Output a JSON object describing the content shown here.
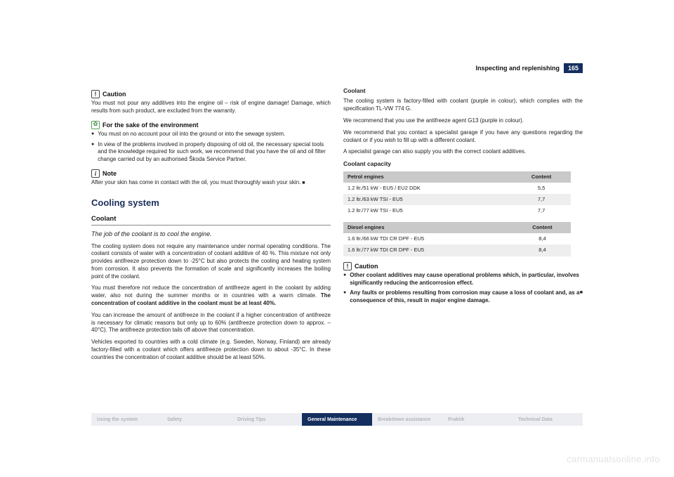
{
  "header": {
    "title": "Inspecting and replenishing",
    "page": "165"
  },
  "left": {
    "caution_h": "Caution",
    "caution_p": "You must not pour any additives into the engine oil – risk of engine damage! Damage, which results from such product, are excluded from the warranty.",
    "env_h": "For the sake of the environment",
    "env_b1": "You must on no account pour oil into the ground or into the sewage system.",
    "env_b2": "In view of the problems involved in properly disposing of old oil, the necessary special tools and the knowledge required for such work, we recommend that you have the oil and oil filter change carried out by an authorised Škoda Service Partner.",
    "note_h": "Note",
    "note_p": "After your skin has come in contact with the oil, you must thoroughly wash your skin.",
    "h1": "Cooling system",
    "h2": "Coolant",
    "italic": "The job of the coolant is to cool the engine.",
    "p1": "The cooling system does not require any maintenance under normal operating conditions. The coolant consists of water with a concentration of coolant additive of 40 %. This mixture not only provides antifreeze protection down to -25°C but also protects the cooling and heating system from corrosion. It also prevents the formation of scale and significantly increases the boiling point of the coolant.",
    "p2a": "You must therefore not reduce the concentration of antifreeze agent in the coolant by adding water, also not during the summer months or in countries with a warm climate. ",
    "p2b": "The concentration of coolant additive in the coolant must be at least 40%.",
    "p3": "You can increase the amount of antifreeze in the coolant if a higher concentration of antifreeze is necessary for climatic reasons but only up to 60% (antifreeze protection down to approx. –40°C). The antifreeze protection tails off above that concentration.",
    "p4": "Vehicles exported to countries with a cold climate (e.g. Sweden, Norway, Finland) are already factory-filled with a coolant which offers antifreeze protection down to about -35°C. In these countries the concentration of coolant additive should be at least 50%."
  },
  "right": {
    "sub1": "Coolant",
    "p1": "The cooling system is factory-filled with coolant (purple in colour), which complies with the specification TL-VW 774 G.",
    "p2": "We recommend that you use the antifreeze agent G13 (purple in colour).",
    "p3": "We recommend that you contact a specialist garage if you have any questions regarding the coolant or if you wish to fill up with a different coolant.",
    "p4": "A specialist garage can also supply you with the correct coolant additives.",
    "sub2": "Coolant capacity",
    "table1": {
      "h1": "Petrol engines",
      "h2": "Content",
      "rows": [
        [
          "1.2 ltr./51 kW - EU5 / EU2 DDK",
          "5,5"
        ],
        [
          "1.2 ltr./63 kW TSI - EU5",
          "7,7"
        ],
        [
          "1.2 ltr./77 kW TSI - EU5",
          "7,7"
        ]
      ]
    },
    "table2": {
      "h1": "Diesel engines",
      "h2": "Content",
      "rows": [
        [
          "1.6 ltr./66 kW TDI CR DPF - EU5",
          "8,4"
        ],
        [
          "1.6 ltr./77 kW TDI CR DPF - EU5",
          "8,4"
        ]
      ]
    },
    "caution_h": "Caution",
    "c1": "Other coolant additives may cause operational problems which, in particular, involves significantly reducing the anticorrosion effect.",
    "c2": "Any faults or problems resulting from corrosion may cause a loss of coolant and, as a consequence of this, result in major engine damage."
  },
  "nav": [
    "Using the system",
    "Safety",
    "Driving Tips",
    "General Maintenance",
    "Breakdown assistance",
    "Praktik",
    "Technical Data"
  ],
  "nav_active": 3,
  "watermark": "carmanualsonline.info"
}
